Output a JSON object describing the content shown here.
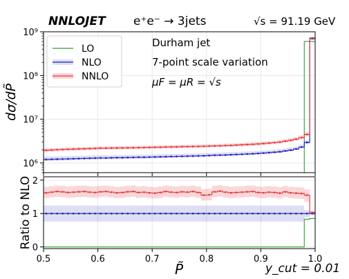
{
  "header": {
    "brand": "NNLOJET",
    "process": "e⁺e⁻ → 3jets",
    "energy": "√s = 91.19 GeV"
  },
  "annotations": {
    "line1": "Durham jet",
    "line2": "7-point scale variation",
    "line3": "μF = μR = √s",
    "ycut": "y_cut = 0.01"
  },
  "colors": {
    "LO": "#2ca02c",
    "NLO": "#1f1fbf",
    "NNLO": "#e8353a"
  },
  "chart_data": [
    {
      "type": "line",
      "panel": "main",
      "ylabel": "dσ/dP̃",
      "yscale": "log",
      "ylim": [
        600000,
        1000000000
      ],
      "xlim": [
        0.5,
        1.0
      ],
      "ytick_labels": [
        "10⁶",
        "10⁷",
        "10⁸",
        "10⁹"
      ],
      "ytick_values": [
        1000000,
        10000000,
        100000000,
        1000000000
      ],
      "grid": true,
      "legend_position": "top-left",
      "x_edges": [
        0.5,
        0.51,
        0.52,
        0.53,
        0.54,
        0.55,
        0.56,
        0.57,
        0.58,
        0.59,
        0.6,
        0.61,
        0.62,
        0.63,
        0.64,
        0.65,
        0.66,
        0.67,
        0.68,
        0.69,
        0.7,
        0.71,
        0.72,
        0.73,
        0.74,
        0.75,
        0.76,
        0.77,
        0.78,
        0.79,
        0.8,
        0.81,
        0.82,
        0.83,
        0.84,
        0.85,
        0.86,
        0.87,
        0.88,
        0.89,
        0.9,
        0.91,
        0.92,
        0.93,
        0.94,
        0.95,
        0.96,
        0.97,
        0.98,
        0.99,
        1.0
      ],
      "series": [
        {
          "name": "LO",
          "values": [
            0,
            0,
            0,
            0,
            0,
            0,
            0,
            0,
            0,
            0,
            0,
            0,
            0,
            0,
            0,
            0,
            0,
            0,
            0,
            0,
            0,
            0,
            0,
            0,
            0,
            0,
            0,
            0,
            0,
            0,
            0,
            0,
            0,
            0,
            0,
            0,
            0,
            0,
            0,
            0,
            0,
            0,
            0,
            0,
            0,
            0,
            0,
            0,
            600000000,
            600000000
          ]
        },
        {
          "name": "NLO",
          "values": [
            1200000,
            1210000,
            1220000,
            1230000,
            1240000,
            1250000,
            1260000,
            1270000,
            1280000,
            1290000,
            1300000,
            1300000,
            1310000,
            1320000,
            1320000,
            1330000,
            1340000,
            1350000,
            1350000,
            1360000,
            1370000,
            1380000,
            1390000,
            1400000,
            1410000,
            1420000,
            1430000,
            1440000,
            1450000,
            1460000,
            1480000,
            1500000,
            1510000,
            1520000,
            1540000,
            1560000,
            1580000,
            1600000,
            1620000,
            1650000,
            1680000,
            1720000,
            1760000,
            1800000,
            1880000,
            1960000,
            2080000,
            2300000,
            2950000,
            700000000
          ],
          "band_low": [
            1100000,
            1110000,
            1120000,
            1130000,
            1140000,
            1150000,
            1160000,
            1170000,
            1180000,
            1190000,
            1200000,
            1200000,
            1210000,
            1220000,
            1220000,
            1230000,
            1240000,
            1250000,
            1250000,
            1260000,
            1270000,
            1280000,
            1290000,
            1300000,
            1310000,
            1320000,
            1330000,
            1340000,
            1350000,
            1360000,
            1380000,
            1400000,
            1410000,
            1420000,
            1440000,
            1460000,
            1480000,
            1500000,
            1520000,
            1550000,
            1580000,
            1620000,
            1660000,
            1700000,
            1780000,
            1860000,
            1980000,
            2200000,
            2700000,
            650000000
          ],
          "band_high": [
            1400000,
            1410000,
            1420000,
            1430000,
            1440000,
            1450000,
            1460000,
            1470000,
            1480000,
            1490000,
            1500000,
            1500000,
            1510000,
            1520000,
            1520000,
            1530000,
            1540000,
            1550000,
            1550000,
            1560000,
            1570000,
            1580000,
            1590000,
            1600000,
            1610000,
            1620000,
            1630000,
            1640000,
            1650000,
            1660000,
            1690000,
            1710000,
            1720000,
            1740000,
            1760000,
            1780000,
            1800000,
            1830000,
            1850000,
            1880000,
            1920000,
            1960000,
            2010000,
            2060000,
            2150000,
            2240000,
            2380000,
            2620000,
            3300000,
            750000000
          ]
        },
        {
          "name": "NNLO",
          "values": [
            1950000,
            1980000,
            2010000,
            2030000,
            2050000,
            2070000,
            2090000,
            2110000,
            2130000,
            2150000,
            2180000,
            2180000,
            2190000,
            2200000,
            2210000,
            2220000,
            2230000,
            2240000,
            2250000,
            2260000,
            2280000,
            2290000,
            2310000,
            2320000,
            2330000,
            2350000,
            2360000,
            2380000,
            2390000,
            2410000,
            2430000,
            2450000,
            2470000,
            2500000,
            2520000,
            2560000,
            2600000,
            2630000,
            2670000,
            2720000,
            2780000,
            2850000,
            2920000,
            3000000,
            3150000,
            3300000,
            3500000,
            3800000,
            4500000,
            720000000
          ],
          "band_low": [
            1780000,
            1810000,
            1840000,
            1860000,
            1880000,
            1900000,
            1920000,
            1940000,
            1960000,
            1980000,
            2010000,
            2010000,
            2020000,
            2030000,
            2040000,
            2050000,
            2060000,
            2070000,
            2080000,
            2090000,
            2100000,
            2110000,
            2130000,
            2140000,
            2150000,
            2170000,
            2180000,
            2200000,
            2210000,
            2230000,
            2250000,
            2270000,
            2290000,
            2310000,
            2330000,
            2370000,
            2400000,
            2430000,
            2470000,
            2510000,
            2570000,
            2630000,
            2700000,
            2780000,
            2910000,
            3050000,
            3230000,
            3500000,
            4100000,
            680000000
          ],
          "band_high": [
            2150000,
            2180000,
            2210000,
            2240000,
            2260000,
            2280000,
            2300000,
            2320000,
            2340000,
            2370000,
            2400000,
            2400000,
            2410000,
            2420000,
            2430000,
            2440000,
            2450000,
            2470000,
            2480000,
            2490000,
            2510000,
            2520000,
            2540000,
            2560000,
            2570000,
            2590000,
            2600000,
            2620000,
            2640000,
            2660000,
            2680000,
            2700000,
            2730000,
            2760000,
            2790000,
            2830000,
            2870000,
            2910000,
            2950000,
            3010000,
            3080000,
            3150000,
            3230000,
            3330000,
            3500000,
            3670000,
            3900000,
            4250000,
            5000000,
            760000000
          ]
        }
      ]
    },
    {
      "type": "line",
      "panel": "ratio",
      "xlabel": "P̃",
      "ylabel": "Ratio to NLO",
      "ylim": [
        -0.05,
        2.1
      ],
      "xlim": [
        0.5,
        1.0
      ],
      "xtick_values": [
        0.5,
        0.6,
        0.7,
        0.8,
        0.9,
        1.0
      ],
      "xtick_labels": [
        "0.5",
        "0.6",
        "0.7",
        "0.8",
        "0.9",
        "1.0"
      ],
      "ytick_values": [
        0,
        1,
        2
      ],
      "ytick_labels": [
        "0",
        "1",
        "2"
      ],
      "grid": true,
      "series": [
        {
          "name": "LO",
          "values": [
            0,
            0,
            0,
            0,
            0,
            0,
            0,
            0,
            0,
            0,
            0,
            0,
            0,
            0,
            0,
            0,
            0,
            0,
            0,
            0,
            0,
            0,
            0,
            0,
            0,
            0,
            0,
            0,
            0,
            0,
            0,
            0,
            0,
            0,
            0,
            0,
            0,
            0,
            0,
            0,
            0,
            0,
            0,
            0,
            0,
            0,
            0,
            0,
            0.83,
            0.85
          ]
        },
        {
          "name": "NLO",
          "values": [
            1,
            1,
            1,
            1,
            1,
            1,
            1,
            1,
            1,
            1,
            1,
            1,
            1,
            1,
            1,
            1,
            1,
            1,
            1,
            1,
            1,
            1,
            1,
            1,
            1,
            1,
            1,
            1,
            1,
            1,
            1,
            1,
            1,
            1,
            1,
            1,
            1,
            1,
            1,
            1,
            1,
            1,
            1,
            1,
            1,
            1,
            1,
            1,
            1,
            1
          ],
          "band_low": [
            0.76,
            0.76,
            0.76,
            0.76,
            0.76,
            0.76,
            0.76,
            0.76,
            0.76,
            0.76,
            0.76,
            0.76,
            0.76,
            0.76,
            0.76,
            0.76,
            0.76,
            0.76,
            0.76,
            0.76,
            0.76,
            0.76,
            0.76,
            0.76,
            0.76,
            0.76,
            0.76,
            0.76,
            0.76,
            0.76,
            0.76,
            0.76,
            0.76,
            0.76,
            0.76,
            0.76,
            0.76,
            0.76,
            0.76,
            0.76,
            0.76,
            0.76,
            0.76,
            0.76,
            0.76,
            0.76,
            0.76,
            0.76,
            0.9,
            0.95
          ],
          "band_high": [
            1.24,
            1.24,
            1.24,
            1.24,
            1.24,
            1.24,
            1.24,
            1.24,
            1.24,
            1.24,
            1.24,
            1.24,
            1.24,
            1.24,
            1.24,
            1.24,
            1.24,
            1.24,
            1.24,
            1.24,
            1.24,
            1.24,
            1.24,
            1.24,
            1.24,
            1.24,
            1.24,
            1.24,
            1.24,
            1.24,
            1.24,
            1.24,
            1.24,
            1.24,
            1.24,
            1.24,
            1.24,
            1.24,
            1.24,
            1.24,
            1.24,
            1.24,
            1.24,
            1.24,
            1.24,
            1.24,
            1.24,
            1.24,
            1.1,
            1.05
          ]
        },
        {
          "name": "NNLO",
          "values": [
            1.62,
            1.64,
            1.66,
            1.65,
            1.63,
            1.64,
            1.65,
            1.66,
            1.64,
            1.63,
            1.65,
            1.66,
            1.64,
            1.62,
            1.63,
            1.65,
            1.66,
            1.63,
            1.64,
            1.62,
            1.61,
            1.63,
            1.66,
            1.64,
            1.63,
            1.65,
            1.64,
            1.66,
            1.63,
            1.55,
            1.56,
            1.65,
            1.67,
            1.64,
            1.62,
            1.63,
            1.64,
            1.65,
            1.66,
            1.63,
            1.62,
            1.64,
            1.63,
            1.61,
            1.65,
            1.62,
            1.61,
            1.6,
            1.55,
            1.03
          ],
          "band_low": [
            1.46,
            1.48,
            1.5,
            1.49,
            1.47,
            1.48,
            1.49,
            1.5,
            1.48,
            1.47,
            1.49,
            1.5,
            1.48,
            1.46,
            1.47,
            1.49,
            1.5,
            1.47,
            1.48,
            1.46,
            1.45,
            1.47,
            1.5,
            1.48,
            1.47,
            1.49,
            1.48,
            1.5,
            1.47,
            1.39,
            1.4,
            1.49,
            1.51,
            1.48,
            1.46,
            1.47,
            1.48,
            1.49,
            1.5,
            1.47,
            1.46,
            1.48,
            1.47,
            1.45,
            1.49,
            1.46,
            1.45,
            1.44,
            1.35,
            1.0
          ],
          "band_high": [
            1.8,
            1.82,
            1.84,
            1.83,
            1.81,
            1.82,
            1.83,
            1.84,
            1.82,
            1.81,
            1.83,
            1.84,
            1.82,
            1.8,
            1.81,
            1.83,
            1.84,
            1.81,
            1.82,
            1.8,
            1.79,
            1.81,
            1.84,
            1.82,
            1.81,
            1.83,
            1.82,
            1.84,
            1.81,
            1.73,
            1.74,
            1.83,
            1.85,
            1.82,
            1.8,
            1.81,
            1.82,
            1.83,
            1.84,
            1.81,
            1.8,
            1.82,
            1.81,
            1.79,
            1.83,
            1.8,
            1.79,
            1.78,
            1.72,
            1.08
          ]
        }
      ]
    }
  ]
}
